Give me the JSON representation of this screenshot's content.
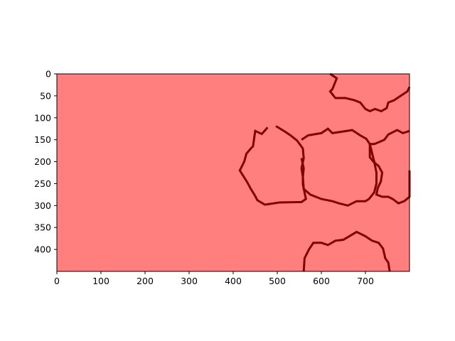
{
  "chart_data": {
    "type": "heatmap",
    "title": "",
    "xlabel": "",
    "ylabel": "",
    "xlim": [
      0,
      800
    ],
    "ylim": [
      450,
      0
    ],
    "y_inverted": true,
    "xticks": [
      0,
      100,
      200,
      300,
      400,
      500,
      600,
      700
    ],
    "xtick_labels": [
      "0",
      "100",
      "200",
      "300",
      "400",
      "500",
      "600",
      "700"
    ],
    "yticks": [
      0,
      50,
      100,
      150,
      200,
      250,
      300,
      350,
      400
    ],
    "ytick_labels": [
      "0",
      "50",
      "100",
      "150",
      "200",
      "250",
      "300",
      "350",
      "400"
    ],
    "grid": false,
    "legend": "none",
    "colors": {
      "background": "#ff7f7f",
      "boundary": "#7f0000",
      "axes": "#000000"
    },
    "boundaries": [
      {
        "name": "middle-left-cell",
        "points": [
          [
            497,
            119
          ],
          [
            518,
            132
          ],
          [
            530,
            140
          ],
          [
            545,
            152
          ],
          [
            558,
            170
          ],
          [
            560,
            192
          ],
          [
            555,
            215
          ],
          [
            558,
            235
          ],
          [
            558,
            252
          ],
          [
            565,
            285
          ],
          [
            555,
            292
          ],
          [
            505,
            293
          ],
          [
            472,
            298
          ],
          [
            455,
            288
          ],
          [
            448,
            275
          ],
          [
            440,
            262
          ],
          [
            432,
            247
          ],
          [
            415,
            220
          ],
          [
            425,
            200
          ],
          [
            430,
            182
          ],
          [
            440,
            170
          ],
          [
            445,
            165
          ],
          [
            450,
            130
          ],
          [
            465,
            137
          ],
          [
            478,
            122
          ]
        ]
      },
      {
        "name": "middle-right-cell",
        "points": [
          [
            555,
            150
          ],
          [
            570,
            140
          ],
          [
            600,
            135
          ],
          [
            615,
            125
          ],
          [
            625,
            135
          ],
          [
            645,
            132
          ],
          [
            670,
            128
          ],
          [
            688,
            140
          ],
          [
            702,
            148
          ],
          [
            710,
            160
          ],
          [
            715,
            180
          ],
          [
            720,
            200
          ],
          [
            725,
            225
          ],
          [
            725,
            250
          ],
          [
            720,
            270
          ],
          [
            708,
            285
          ],
          [
            700,
            290
          ],
          [
            680,
            290
          ],
          [
            660,
            300
          ],
          [
            640,
            295
          ],
          [
            625,
            290
          ],
          [
            600,
            285
          ],
          [
            575,
            275
          ],
          [
            560,
            262
          ],
          [
            558,
            235
          ],
          [
            560,
            215
          ],
          [
            555,
            192
          ]
        ]
      },
      {
        "name": "top-right-cell",
        "points": [
          [
            620,
            0
          ],
          [
            635,
            10
          ],
          [
            625,
            35
          ],
          [
            620,
            40
          ],
          [
            632,
            55
          ],
          [
            655,
            55
          ],
          [
            675,
            60
          ],
          [
            688,
            65
          ],
          [
            700,
            80
          ],
          [
            710,
            85
          ],
          [
            722,
            80
          ],
          [
            736,
            85
          ],
          [
            748,
            78
          ],
          [
            752,
            65
          ],
          [
            765,
            60
          ],
          [
            780,
            50
          ],
          [
            795,
            40
          ],
          [
            800,
            30
          ]
        ]
      },
      {
        "name": "right-edge-cell",
        "points": [
          [
            800,
            130
          ],
          [
            785,
            135
          ],
          [
            772,
            128
          ],
          [
            752,
            138
          ],
          [
            743,
            150
          ],
          [
            732,
            155
          ],
          [
            720,
            160
          ],
          [
            710,
            160
          ],
          [
            710,
            190
          ],
          [
            718,
            200
          ],
          [
            730,
            210
          ],
          [
            738,
            225
          ],
          [
            735,
            245
          ],
          [
            728,
            260
          ],
          [
            725,
            275
          ],
          [
            738,
            280
          ],
          [
            752,
            280
          ],
          [
            762,
            285
          ],
          [
            775,
            295
          ],
          [
            788,
            290
          ],
          [
            800,
            280
          ],
          [
            800,
            220
          ]
        ]
      },
      {
        "name": "bottom-cell",
        "points": [
          [
            560,
            450
          ],
          [
            562,
            420
          ],
          [
            572,
            400
          ],
          [
            582,
            385
          ],
          [
            600,
            385
          ],
          [
            615,
            390
          ],
          [
            632,
            380
          ],
          [
            650,
            378
          ],
          [
            660,
            372
          ],
          [
            680,
            360
          ],
          [
            700,
            370
          ],
          [
            715,
            380
          ],
          [
            730,
            385
          ],
          [
            740,
            398
          ],
          [
            745,
            420
          ],
          [
            752,
            430
          ],
          [
            755,
            450
          ]
        ]
      }
    ]
  }
}
